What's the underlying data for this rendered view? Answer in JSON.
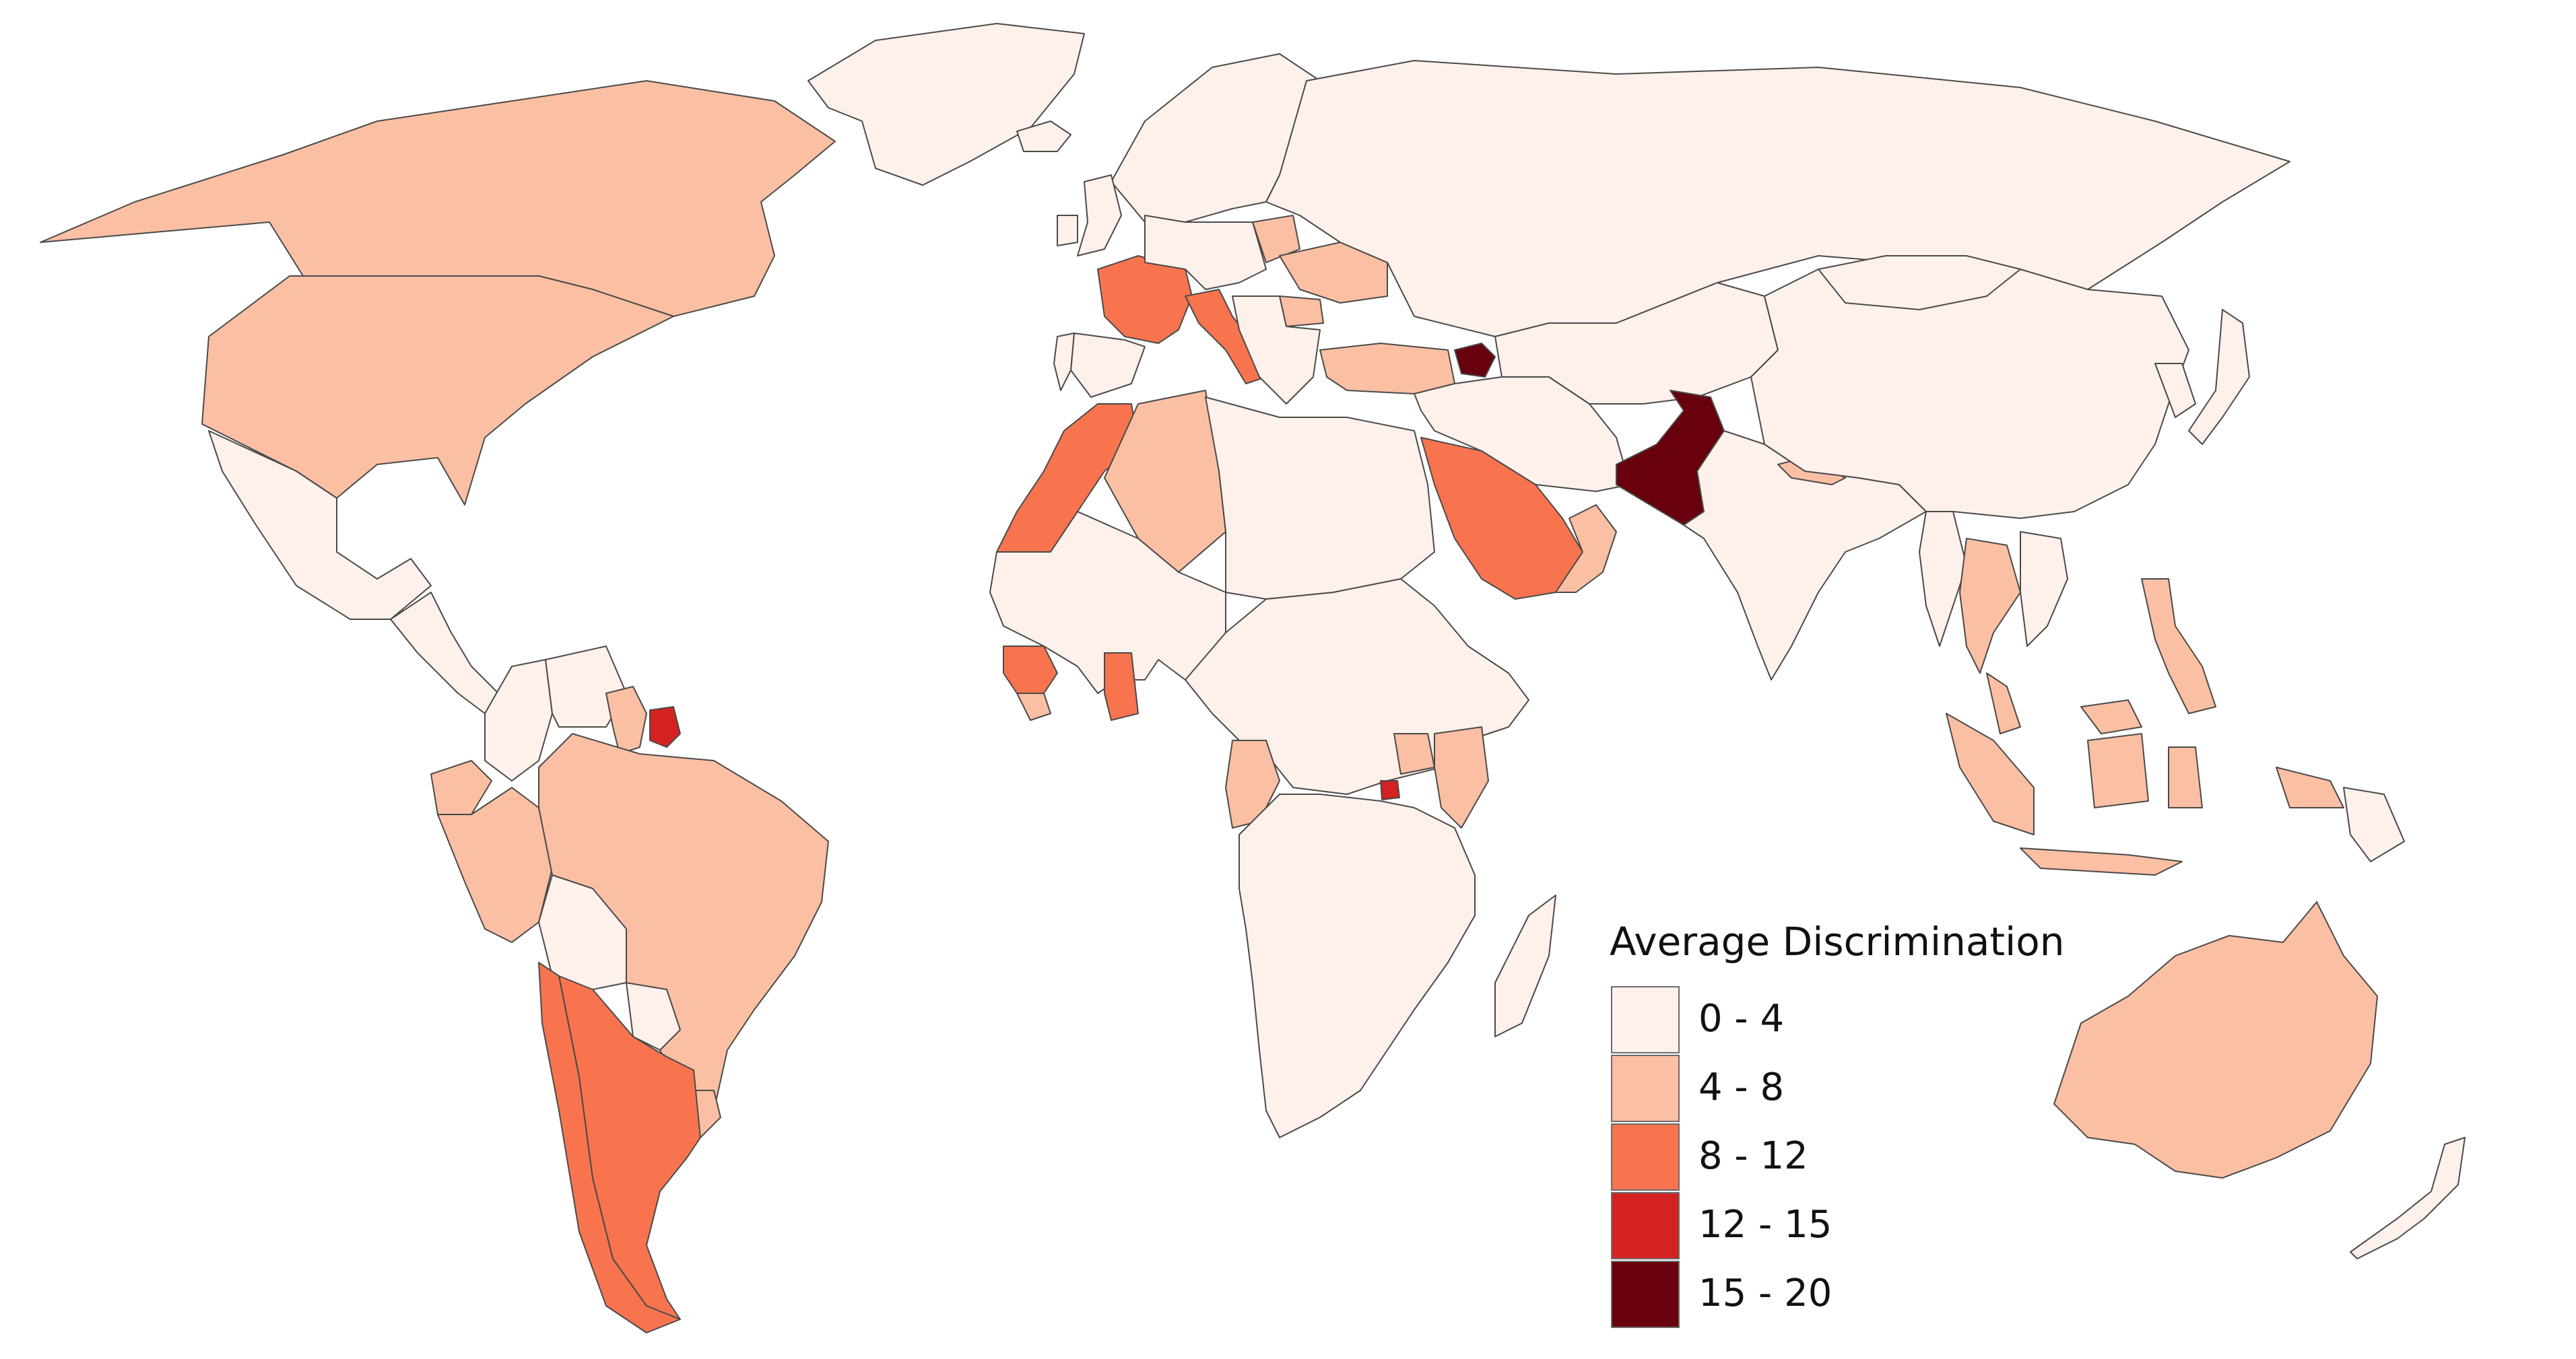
{
  "legend": {
    "title": "Average Discrimination",
    "classes": [
      {
        "label": "0 - 4",
        "color": "#fef0ea"
      },
      {
        "label": "4 - 8",
        "color": "#fbbfa3"
      },
      {
        "label": "8 - 12",
        "color": "#f7744f"
      },
      {
        "label": "12 - 15",
        "color": "#d42222"
      },
      {
        "label": "15 - 20",
        "color": "#67000c"
      }
    ]
  },
  "countries": [
    {
      "name": "Greenland",
      "class": 0
    },
    {
      "name": "Canada",
      "class": 1
    },
    {
      "name": "United States",
      "class": 1
    },
    {
      "name": "Mexico",
      "class": 0
    },
    {
      "name": "Central America",
      "class": 0
    },
    {
      "name": "Colombia",
      "class": 0
    },
    {
      "name": "Venezuela",
      "class": 0
    },
    {
      "name": "Guyana",
      "class": 1
    },
    {
      "name": "Suriname",
      "class": 3
    },
    {
      "name": "Ecuador",
      "class": 1
    },
    {
      "name": "Peru",
      "class": 1
    },
    {
      "name": "Brazil",
      "class": 1
    },
    {
      "name": "Bolivia",
      "class": 0
    },
    {
      "name": "Paraguay",
      "class": 0
    },
    {
      "name": "Uruguay",
      "class": 1
    },
    {
      "name": "Chile",
      "class": 2
    },
    {
      "name": "Argentina",
      "class": 2
    },
    {
      "name": "Russia",
      "class": 0
    },
    {
      "name": "Scandinavia",
      "class": 0
    },
    {
      "name": "Iceland",
      "class": 0
    },
    {
      "name": "United Kingdom",
      "class": 0
    },
    {
      "name": "Ireland",
      "class": 0
    },
    {
      "name": "France",
      "class": 2
    },
    {
      "name": "Spain",
      "class": 0
    },
    {
      "name": "Portugal",
      "class": 0
    },
    {
      "name": "Central Europe",
      "class": 0
    },
    {
      "name": "Poland",
      "class": 1
    },
    {
      "name": "Italy",
      "class": 2
    },
    {
      "name": "Ukraine",
      "class": 1
    },
    {
      "name": "Balkans",
      "class": 0
    },
    {
      "name": "Romania",
      "class": 1
    },
    {
      "name": "Turkey",
      "class": 1
    },
    {
      "name": "Azerbaijan",
      "class": 4
    },
    {
      "name": "Morocco",
      "class": 2
    },
    {
      "name": "Algeria",
      "class": 1
    },
    {
      "name": "North Africa",
      "class": 0
    },
    {
      "name": "West Africa",
      "class": 0
    },
    {
      "name": "Guinea",
      "class": 2
    },
    {
      "name": "Sierra Leone",
      "class": 1
    },
    {
      "name": "Ghana",
      "class": 2
    },
    {
      "name": "Central Africa",
      "class": 0
    },
    {
      "name": "Gabon",
      "class": 1
    },
    {
      "name": "Uganda",
      "class": 1
    },
    {
      "name": "Kenya",
      "class": 1
    },
    {
      "name": "Rwanda",
      "class": 3
    },
    {
      "name": "Southern Africa",
      "class": 0
    },
    {
      "name": "Madagascar",
      "class": 0
    },
    {
      "name": "Saudi Arabia",
      "class": 2
    },
    {
      "name": "Oman",
      "class": 1
    },
    {
      "name": "Middle East",
      "class": 0
    },
    {
      "name": "Central Asia",
      "class": 0
    },
    {
      "name": "Pakistan",
      "class": 4
    },
    {
      "name": "India",
      "class": 0
    },
    {
      "name": "Nepal",
      "class": 1
    },
    {
      "name": "China",
      "class": 0
    },
    {
      "name": "Mongolia",
      "class": 0
    },
    {
      "name": "Japan",
      "class": 0
    },
    {
      "name": "Korea",
      "class": 0
    },
    {
      "name": "Myanmar",
      "class": 0
    },
    {
      "name": "Thailand",
      "class": 1
    },
    {
      "name": "Vietnam",
      "class": 0
    },
    {
      "name": "Philippines",
      "class": 1
    },
    {
      "name": "Malaysia",
      "class": 1
    },
    {
      "name": "Indonesia",
      "class": 1
    },
    {
      "name": "Papua New Guinea",
      "class": 0
    },
    {
      "name": "Australia",
      "class": 1
    },
    {
      "name": "New Zealand",
      "class": 0
    }
  ]
}
